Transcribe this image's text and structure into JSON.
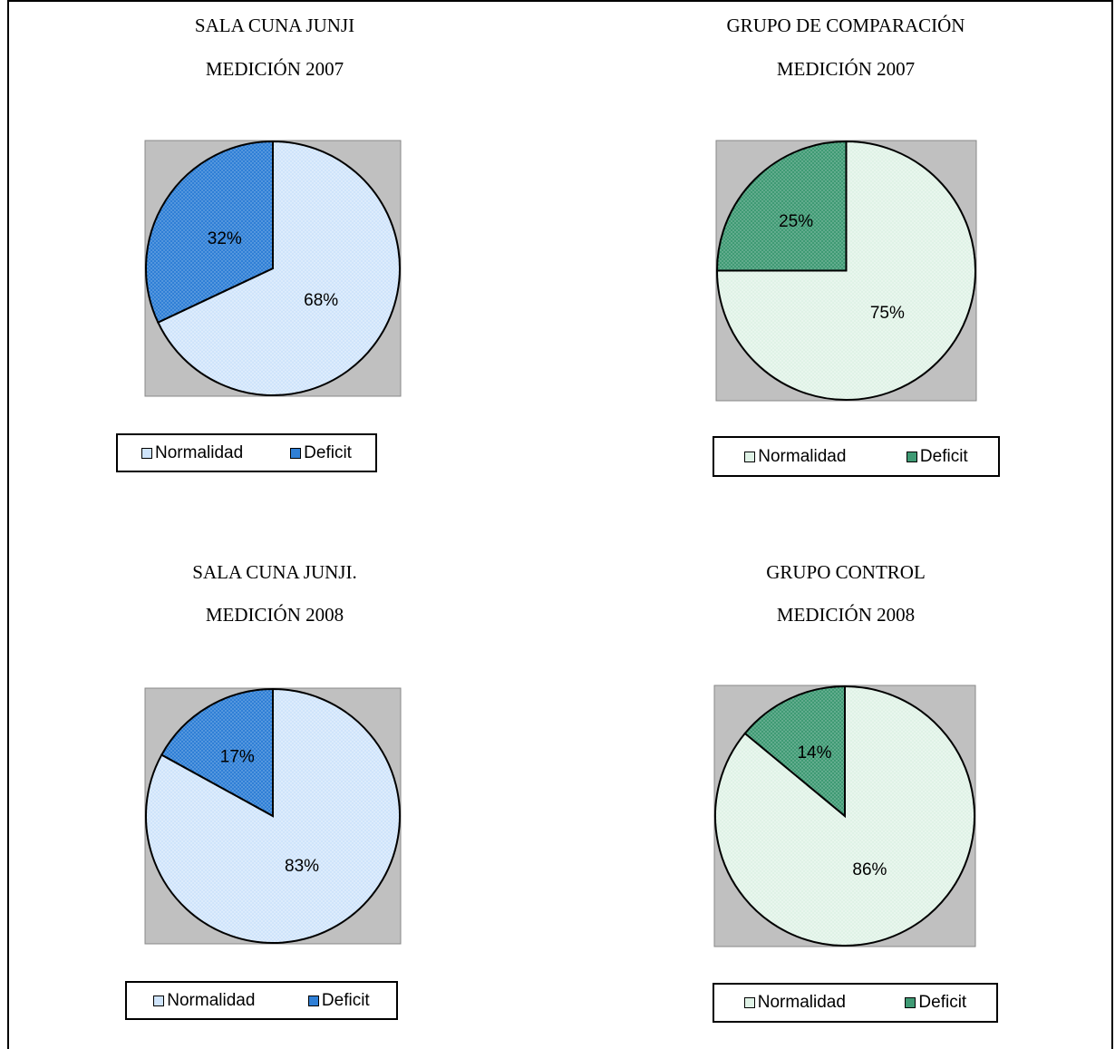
{
  "chart_data": [
    {
      "type": "pie",
      "title_lines": [
        "SALA CUNA JUNJI",
        "MEDICIÓN 2007"
      ],
      "categories": [
        "Normalidad",
        "Deficit"
      ],
      "values": [
        68,
        32
      ],
      "data_labels": [
        "68%",
        "32%"
      ],
      "colors": [
        "#cfe4fb",
        "#2f7fd6"
      ],
      "legend_position": "bottom"
    },
    {
      "type": "pie",
      "title_lines": [
        "GRUPO DE COMPARACIÓN",
        "MEDICIÓN 2007"
      ],
      "categories": [
        "Normalidad",
        "Deficit"
      ],
      "values": [
        75,
        25
      ],
      "data_labels": [
        "75%",
        "25%"
      ],
      "colors": [
        "#dff2e6",
        "#3f9a74"
      ],
      "legend_position": "bottom"
    },
    {
      "type": "pie",
      "title_lines": [
        "SALA CUNA JUNJI.",
        "MEDICIÓN 2008"
      ],
      "categories": [
        "Normalidad",
        "Deficit"
      ],
      "values": [
        83,
        17
      ],
      "data_labels": [
        "83%",
        "17%"
      ],
      "colors": [
        "#cfe4fb",
        "#2f7fd6"
      ],
      "legend_position": "bottom"
    },
    {
      "type": "pie",
      "title_lines": [
        "GRUPO CONTROL",
        "MEDICIÓN 2008"
      ],
      "categories": [
        "Normalidad",
        "Deficit"
      ],
      "values": [
        86,
        14
      ],
      "data_labels": [
        "86%",
        "14%"
      ],
      "colors": [
        "#dff2e6",
        "#3f9a74"
      ],
      "legend_position": "bottom"
    }
  ]
}
